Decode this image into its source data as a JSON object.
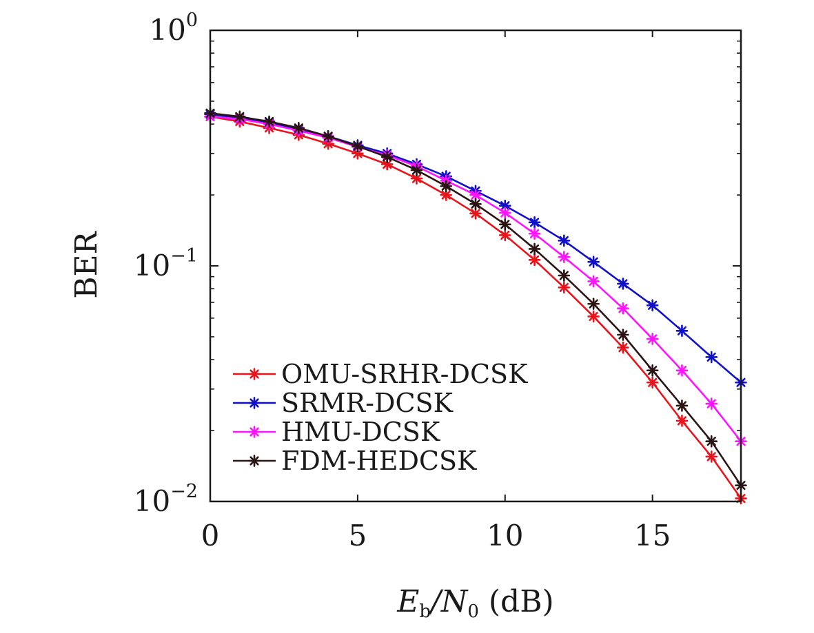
{
  "chart_data": {
    "type": "line",
    "title": "",
    "xlabel": {
      "main": "E",
      "sub1": "b",
      "mid": "/N",
      "sub2": "0",
      "tail": " (dB)"
    },
    "ylabel": "BER",
    "x": [
      0,
      1,
      2,
      3,
      4,
      5,
      6,
      7,
      8,
      9,
      10,
      11,
      12,
      13,
      14,
      15,
      16,
      17,
      18
    ],
    "xlim": [
      0,
      18
    ],
    "ylim": [
      0.01,
      1
    ],
    "yscale": "log",
    "grid": false,
    "legend_position": "bottom-left",
    "x_ticks": [
      {
        "value": 0,
        "label": "0"
      },
      {
        "value": 5,
        "label": "5"
      },
      {
        "value": 10,
        "label": "10"
      },
      {
        "value": 15,
        "label": "15"
      }
    ],
    "y_ticks": [
      {
        "value": 1,
        "base": "10",
        "exp": "0"
      },
      {
        "value": 0.1,
        "base": "10",
        "exp": "−1"
      },
      {
        "value": 0.01,
        "base": "10",
        "exp": "−2"
      }
    ],
    "series": [
      {
        "name": "OMU-SRHR-DCSK",
        "color": "#e8141b",
        "values": [
          0.43,
          0.41,
          0.385,
          0.36,
          0.33,
          0.3,
          0.27,
          0.235,
          0.2,
          0.167,
          0.135,
          0.106,
          0.081,
          0.061,
          0.045,
          0.032,
          0.022,
          0.0155,
          0.0103
        ]
      },
      {
        "name": "SRMR-DCSK",
        "color": "#1010c8",
        "values": [
          0.44,
          0.425,
          0.405,
          0.38,
          0.355,
          0.325,
          0.3,
          0.27,
          0.24,
          0.208,
          0.18,
          0.153,
          0.128,
          0.104,
          0.084,
          0.068,
          0.053,
          0.041,
          0.032
        ]
      },
      {
        "name": "HMU-DCSK",
        "color": "#ff14ff",
        "values": [
          0.43,
          0.42,
          0.4,
          0.375,
          0.35,
          0.32,
          0.295,
          0.265,
          0.23,
          0.2,
          0.168,
          0.137,
          0.109,
          0.086,
          0.066,
          0.049,
          0.036,
          0.026,
          0.018
        ]
      },
      {
        "name": "FDM-HEDCSK",
        "color": "#2a1414",
        "values": [
          0.445,
          0.43,
          0.41,
          0.385,
          0.355,
          0.322,
          0.29,
          0.255,
          0.218,
          0.183,
          0.15,
          0.118,
          0.091,
          0.069,
          0.051,
          0.036,
          0.0255,
          0.018,
          0.0117
        ]
      }
    ]
  }
}
